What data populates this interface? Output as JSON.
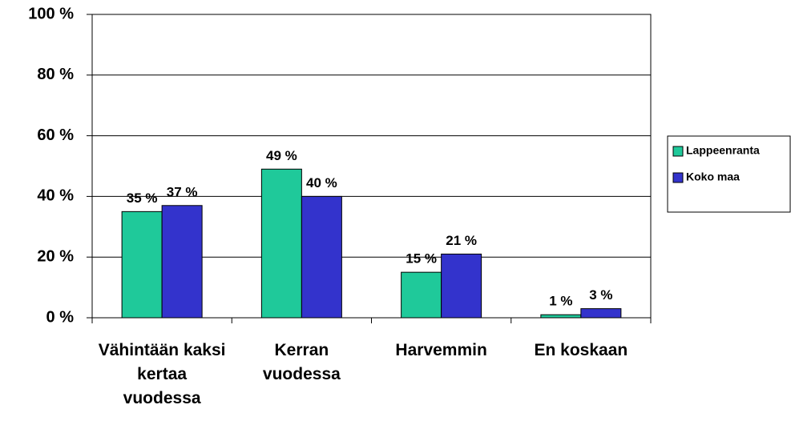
{
  "chart_data": {
    "type": "bar",
    "categories": [
      "Vähintään kaksi kertaa vuodessa",
      "Kerran vuodessa",
      "Harvemmin",
      "En koskaan"
    ],
    "series": [
      {
        "name": "Lappeenranta",
        "color": "#1fc99a",
        "values": [
          35,
          49,
          15,
          1
        ],
        "value_labels": [
          "35 %",
          "49 %",
          "15 %",
          "1 %"
        ]
      },
      {
        "name": "Koko maa",
        "color": "#3333cc",
        "values": [
          37,
          40,
          21,
          3
        ],
        "value_labels": [
          "37 %",
          "40 %",
          "21 %",
          "3 %"
        ]
      }
    ],
    "ylim": [
      0,
      100
    ],
    "yticks": [
      {
        "value": 0,
        "label": "0 %"
      },
      {
        "value": 20,
        "label": "20 %"
      },
      {
        "value": 40,
        "label": "40 %"
      },
      {
        "value": 60,
        "label": "60 %"
      },
      {
        "value": 80,
        "label": "80 %"
      },
      {
        "value": 100,
        "label": "100 %"
      }
    ],
    "grid": true,
    "legend": "right"
  }
}
